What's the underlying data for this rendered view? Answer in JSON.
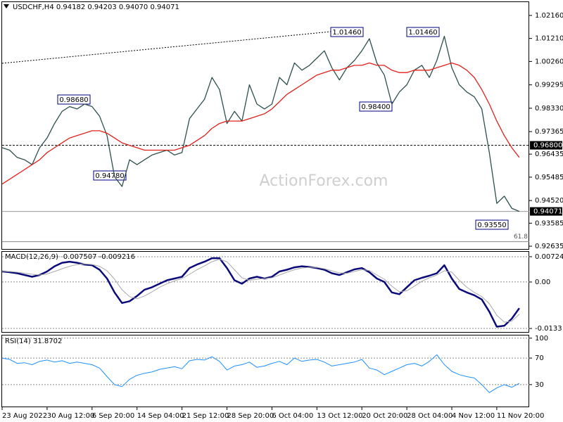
{
  "header": "USDCHF,H4  0.94182 0.94203 0.94070 0.94071",
  "watermark": "ActionForex.com",
  "chart_data": [
    {
      "type": "line",
      "ylim": [
        0.9252,
        1.0271
      ],
      "yticks": [
        {
          "value": 1.0216,
          "label": "1.02160"
        },
        {
          "value": 1.0121,
          "label": "1.01210"
        },
        {
          "value": 1.0026,
          "label": "1.00260"
        },
        0.99295,
        {
          "value": 0.9833,
          "label": "0.98330"
        },
        0.97365,
        0.96435,
        0.95485,
        {
          "value": 0.9452,
          "label": "0.94520"
        },
        0.93585,
        0.92635
      ],
      "series": [
        {
          "name": "USDCHF",
          "color": "#2f4f4f",
          "values": [
            0.967,
            0.966,
            0.963,
            0.962,
            0.96,
            0.967,
            0.971,
            0.977,
            0.982,
            0.984,
            0.983,
            0.985,
            0.984,
            0.98,
            0.972,
            0.955,
            0.951,
            0.962,
            0.96,
            0.962,
            0.964,
            0.965,
            0.966,
            0.964,
            0.965,
            0.979,
            0.983,
            0.987,
            0.996,
            0.991,
            0.977,
            0.982,
            0.978,
            0.993,
            0.985,
            0.983,
            0.985,
            0.996,
            0.993,
            1.002,
            0.999,
            1.001,
            1.004,
            1.007,
            1.0,
            0.995,
            1.0,
            1.003,
            1.007,
            1.012,
            1.002,
            0.997,
            0.985,
            0.99,
            0.993,
            0.999,
            1.001,
            0.996,
            1.003,
            1.013,
            1.0,
            0.993,
            0.99,
            0.988,
            0.983,
            0.965,
            0.944,
            0.947,
            0.942,
            0.94071
          ]
        },
        {
          "name": "MA",
          "color": "#e0201b",
          "values": [
            0.952,
            0.954,
            0.956,
            0.958,
            0.96,
            0.962,
            0.965,
            0.967,
            0.969,
            0.971,
            0.972,
            0.973,
            0.974,
            0.974,
            0.973,
            0.971,
            0.969,
            0.968,
            0.967,
            0.966,
            0.966,
            0.966,
            0.966,
            0.966,
            0.967,
            0.968,
            0.97,
            0.972,
            0.975,
            0.977,
            0.978,
            0.978,
            0.978,
            0.979,
            0.98,
            0.981,
            0.983,
            0.986,
            0.989,
            0.991,
            0.993,
            0.995,
            0.997,
            0.998,
            0.999,
            0.999,
            1.0,
            1.001,
            1.001,
            1.002,
            1.001,
            1.001,
            0.999,
            0.998,
            0.998,
            0.999,
            0.999,
            0.999,
            1.0,
            1.001,
            1.002,
            1.001,
            0.999,
            0.996,
            0.991,
            0.985,
            0.978,
            0.972,
            0.967,
            0.963
          ]
        }
      ],
      "annotations": [
        "0.98680",
        "0.94780",
        "1.01460",
        "1.01460",
        "0.98400",
        "0.93550"
      ],
      "levels": [
        {
          "value": 0.968,
          "label": "0.96800",
          "style": "dashed"
        },
        {
          "value": 0.94071,
          "label": "0.94071",
          "style": "solid"
        }
      ],
      "fib_levels": [
        {
          "value": 0.9282,
          "label": "61.8"
        }
      ]
    },
    {
      "type": "line",
      "title": "MACD(12,26,9) -0.007507 -0.009216",
      "ylim": [
        -0.0143,
        0.00864
      ],
      "grid": true,
      "yticks": [
        0.00724,
        {
          "value": 0,
          "label": "0.00"
        },
        -0.0133
      ],
      "series": [
        {
          "name": "MACD",
          "color": "#0a0a7a",
          "width": 2.5,
          "values": [
            0.003,
            0.0028,
            0.0025,
            0.002,
            0.0015,
            0.002,
            0.003,
            0.0045,
            0.0055,
            0.0058,
            0.0055,
            0.005,
            0.0048,
            0.0035,
            0.001,
            -0.003,
            -0.006,
            -0.0055,
            -0.004,
            -0.0022,
            -0.0015,
            -0.0005,
            0.0005,
            0.001,
            0.0015,
            0.004,
            0.005,
            0.0058,
            0.0068,
            0.0068,
            0.004,
            0.0005,
            -0.0005,
            0.001,
            0.0015,
            0.001,
            0.0015,
            0.003,
            0.0035,
            0.0042,
            0.0045,
            0.0043,
            0.004,
            0.0035,
            0.0025,
            0.002,
            0.0028,
            0.0036,
            0.004,
            0.0028,
            0.001,
            0,
            -0.003,
            -0.0035,
            -0.0015,
            0.0005,
            0.0012,
            0.0018,
            0.0025,
            0.0048,
            0.001,
            -0.002,
            -0.003,
            -0.0038,
            -0.005,
            -0.0085,
            -0.0128,
            -0.0125,
            -0.0105,
            -0.007507
          ]
        },
        {
          "name": "Signal",
          "color": "#a9a9a9",
          "width": 1,
          "values": [
            0.003,
            0.003,
            0.0028,
            0.0025,
            0.0022,
            0.002,
            0.0023,
            0.003,
            0.0038,
            0.0045,
            0.005,
            0.0052,
            0.005,
            0.0045,
            0.0032,
            0.0008,
            -0.0022,
            -0.0042,
            -0.0048,
            -0.004,
            -0.0028,
            -0.0015,
            -0.0005,
            0.0003,
            0.001,
            0.0022,
            0.0035,
            0.0046,
            0.0058,
            0.0065,
            0.0058,
            0.0035,
            0.0012,
            0.0005,
            0.0008,
            0.001,
            0.0012,
            0.002,
            0.0028,
            0.0035,
            0.004,
            0.0042,
            0.0042,
            0.0038,
            0.0032,
            0.0026,
            0.0025,
            0.003,
            0.0035,
            0.0033,
            0.002,
            0.0008,
            -0.0012,
            -0.0028,
            -0.0025,
            -0.0012,
            0.0002,
            0.0012,
            0.002,
            0.0032,
            0.0028,
            0.0005,
            -0.0015,
            -0.003,
            -0.0042,
            -0.0062,
            -0.0095,
            -0.0115,
            -0.0112,
            -0.009216
          ]
        }
      ]
    },
    {
      "type": "line",
      "title": "RSI(14) 31.8702",
      "ylim": [
        -3,
        104
      ],
      "grid": true,
      "yticks": [
        100,
        70,
        30
      ],
      "categories": [
        "23 Aug 2022",
        null,
        null,
        null,
        null,
        null,
        "30 Aug 12:00",
        null,
        null,
        null,
        null,
        null,
        "6 Sep 20:00",
        null,
        null,
        null,
        null,
        null,
        "14 Sep 04:00",
        null,
        null,
        null,
        null,
        null,
        "21 Sep 12:00",
        null,
        null,
        null,
        null,
        null,
        "28 Sep 20:00",
        null,
        null,
        null,
        null,
        null,
        "6 Oct 04:00",
        null,
        null,
        null,
        null,
        null,
        "13 Oct 12:00",
        null,
        null,
        null,
        null,
        null,
        "20 Oct 20:00",
        null,
        null,
        null,
        null,
        null,
        "28 Oct 04:00",
        null,
        null,
        null,
        null,
        null,
        "4 Nov 12:00",
        null,
        null,
        null,
        null,
        null,
        "11 Nov 20:00",
        null,
        null,
        null
      ],
      "series": [
        {
          "name": "RSI",
          "color": "#1e90ff",
          "width": 1,
          "values": [
            70,
            68,
            62,
            63,
            60,
            65,
            67,
            64,
            66,
            62,
            64,
            62,
            60,
            55,
            42,
            30,
            27,
            38,
            44,
            47,
            49,
            53,
            55,
            57,
            54,
            66,
            68,
            67,
            72,
            65,
            52,
            58,
            60,
            64,
            56,
            58,
            62,
            65,
            60,
            70,
            65,
            67,
            68,
            64,
            58,
            60,
            62,
            64,
            68,
            55,
            52,
            45,
            50,
            55,
            60,
            62,
            58,
            65,
            75,
            60,
            50,
            45,
            42,
            40,
            30,
            18,
            25,
            30,
            26,
            31.8702
          ]
        }
      ]
    }
  ]
}
